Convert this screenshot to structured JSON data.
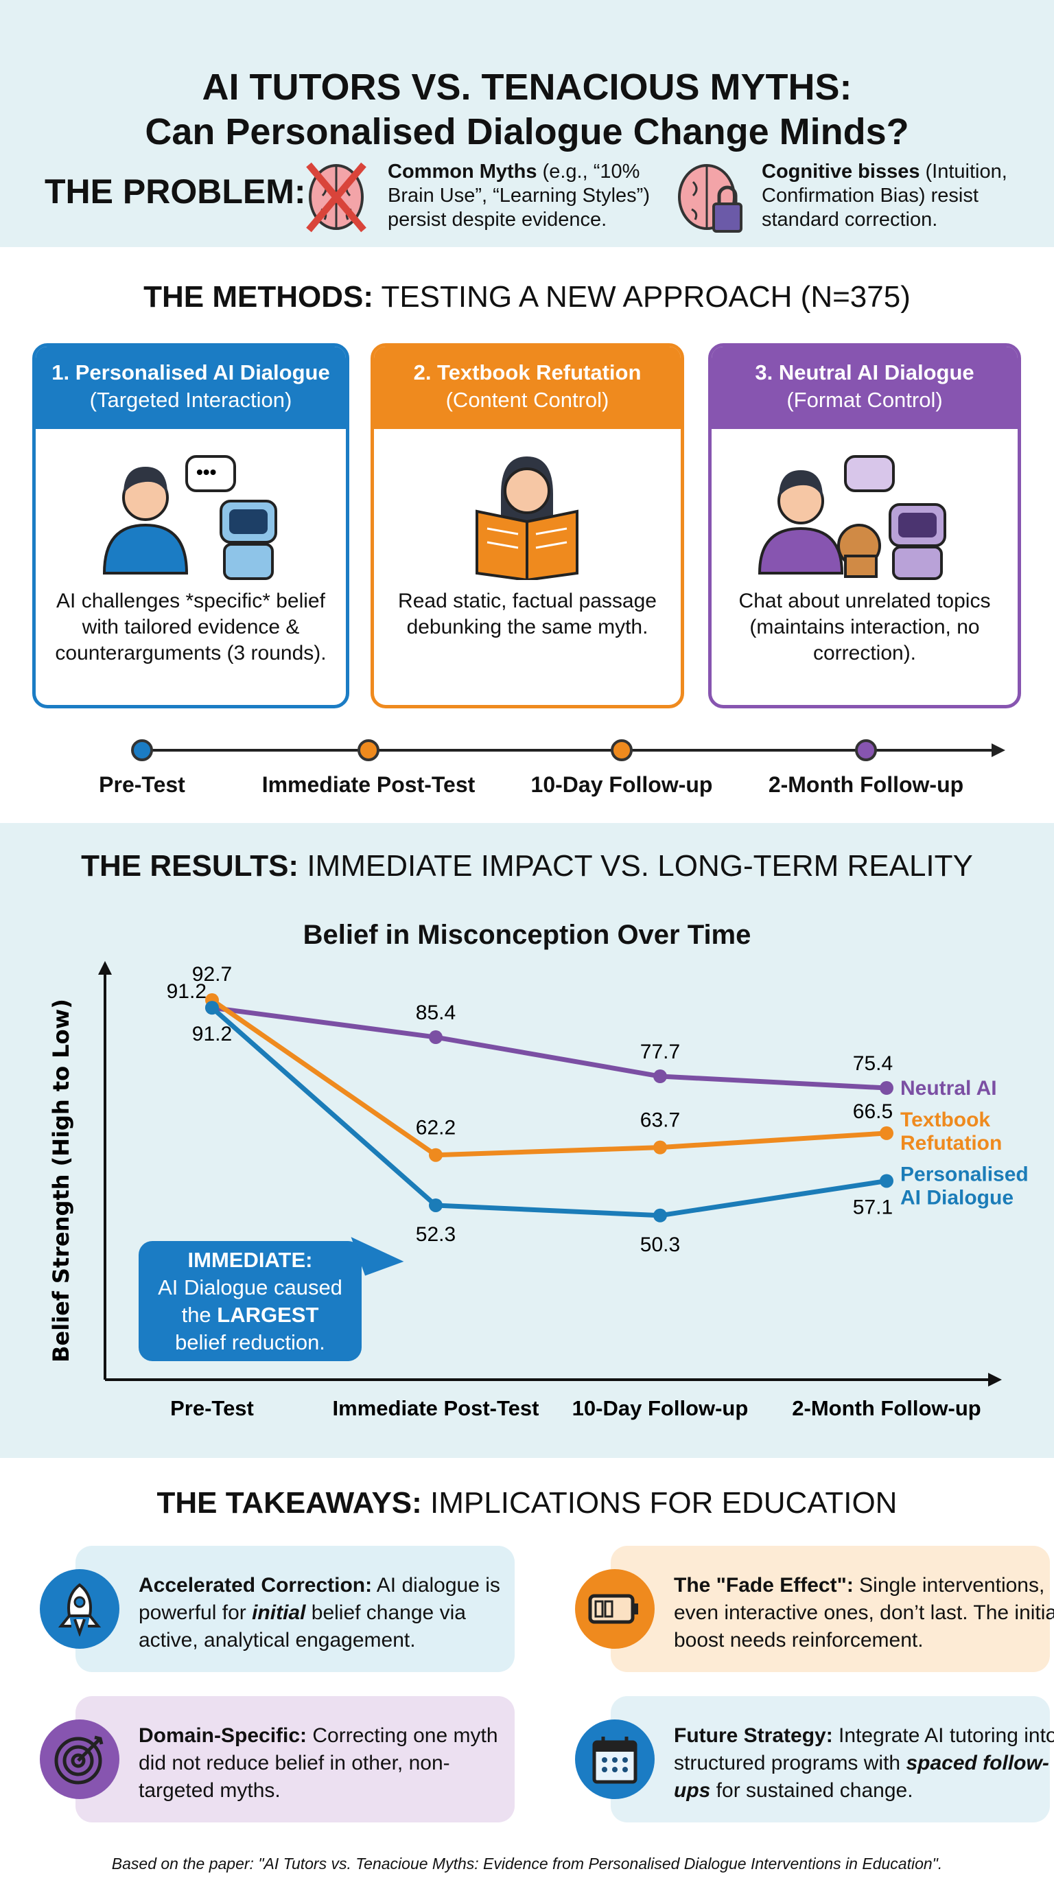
{
  "header": {
    "title_line1": "AI TUTORS VS. TENACIOUS MYTHS:",
    "title_line2": "Can Personalised Dialogue Change Minds?"
  },
  "problem": {
    "label": "THE PROBLEM:",
    "items": [
      {
        "icon": "crossed-brain-icon",
        "bold": "Common Myths",
        "text": " (e.g., “10% Brain Use”, “Learning Styles”) persist despite evidence."
      },
      {
        "icon": "locked-brain-icon",
        "bold": "Cognitive bisses",
        "text": " (Intuition, Confirmation Bias) resist standard correction."
      }
    ]
  },
  "methods": {
    "heading_bold": "THE METHODS:",
    "heading_rest": " TESTING A NEW APPROACH (N=375)",
    "cards": [
      {
        "title": "1. Personalised AI Dialogue",
        "subtitle": "(Targeted Interaction)",
        "body": "AI challenges *specific* belief with tailored evidence & counterarguments (3 rounds).",
        "color": "#1b7cc4",
        "icon": "person-chatting-with-robot-icon"
      },
      {
        "title": "2. Textbook Refutation",
        "subtitle": "(Content Control)",
        "body": "Read static, factual passage debunking the same myth.",
        "color": "#ef8a1e",
        "icon": "person-reading-book-icon"
      },
      {
        "title": "3. Neutral AI Dialogue",
        "subtitle": "(Format Control)",
        "body": "Chat about unrelated topics (maintains interaction, no correction).",
        "color": "#8755b0",
        "icon": "person-dog-robot-chat-icon"
      }
    ],
    "timeline": [
      "Pre-Test",
      "Immediate Post-Test",
      "10-Day Follow-up",
      "2-Month Follow-up"
    ]
  },
  "results": {
    "heading_bold": "THE RESULTS:",
    "heading_rest": " IMMEDIATE IMPACT VS. LONG-TERM REALITY",
    "callout": {
      "title": "IMMEDIATE:",
      "line1": "AI Dialogue caused",
      "line2_pre": "the ",
      "line2_bold": "LARGEST",
      "line3": "belief reduction."
    }
  },
  "chart_data": {
    "type": "line",
    "title": "Belief in Misconception Over Time",
    "xlabel": "",
    "ylabel": "Belief Strength (High to Low)",
    "categories": [
      "Pre-Test",
      "Immediate Post-Test",
      "10-Day Follow-up",
      "2-Month Follow-up"
    ],
    "ylim": [
      45,
      95
    ],
    "grid": false,
    "legend": "right, at line ends",
    "series": [
      {
        "name": "Neutral AI",
        "color": "#7b4fa3",
        "values": [
          91.2,
          85.4,
          77.7,
          75.4
        ]
      },
      {
        "name": "Textbook Refutation",
        "color": "#ef8a1e",
        "values": [
          92.7,
          62.2,
          63.7,
          66.5
        ]
      },
      {
        "name": "Personalised AI Dialogue",
        "color": "#1b7cb8",
        "values": [
          91.2,
          52.3,
          50.3,
          57.1
        ]
      }
    ]
  },
  "takeaways": {
    "heading_bold": "THE TAKEAWAYS:",
    "heading_rest": " IMPLICATIONS FOR EDUCATION",
    "items": [
      {
        "icon": "rocket-icon",
        "bold": "Accelerated Correction:",
        "t1": " AI dialogue is powerful for ",
        "em": "initial",
        "t2": " belief change via active, analytical engagement.",
        "bg": "#dff0f6",
        "circle": "#1b7cc4"
      },
      {
        "icon": "low-battery-icon",
        "bold": "The \"Fade Effect\":",
        "t1": " Single interventions, even interactive ones, don’t last. The initial boost needs reinforcement.",
        "em": "",
        "t2": "",
        "bg": "#fdebd5",
        "circle": "#ef8a1e"
      },
      {
        "icon": "target-icon",
        "bold": "Domain-Specific:",
        "t1": " Correcting one myth did not reduce belief in other, non-targeted myths.",
        "em": "",
        "t2": "",
        "bg": "#ece0f1",
        "circle": "#8755b0"
      },
      {
        "icon": "calendar-icon",
        "bold": "Future Strategy:",
        "t1": " Integrate AI tutoring into structured programs with ",
        "em": "spaced follow-ups",
        "t2": " for sustained change.",
        "bg": "#e3f1f6",
        "circle": "#1b7cc4"
      }
    ]
  },
  "footer": "Based on the paper: \"AI Tutors vs. Tenacioue Myths: Evidence from Personalised Dialogue Interventions in Education\"."
}
